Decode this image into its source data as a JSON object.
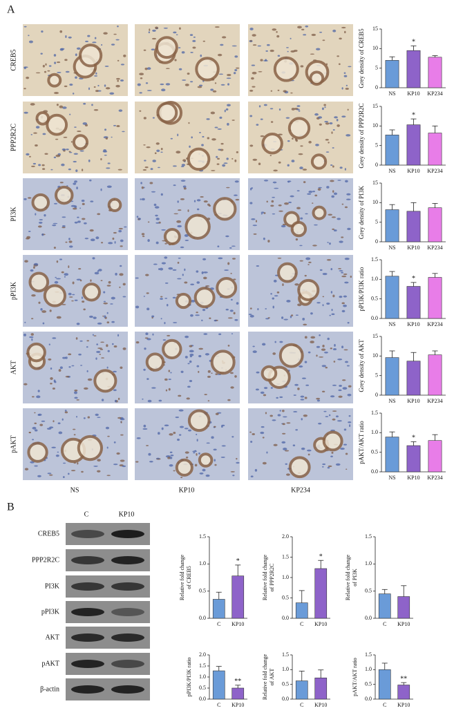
{
  "panel_labels": [
    "A",
    "B"
  ],
  "panel_a": {
    "row_labels": [
      "CREB5",
      "PPP2R2C",
      "PI3K",
      "pPI3K",
      "AKT",
      "pAKT"
    ],
    "column_labels": [
      "NS",
      "KP10",
      "KP234"
    ]
  },
  "panel_b": {
    "blot_column_labels": [
      "C",
      "KP10"
    ],
    "blot_row_labels": [
      "CREB5",
      "PPP2R2C",
      "PI3K",
      "pPI3K",
      "AKT",
      "pAKT",
      "β-actin"
    ]
  },
  "chart_data": [
    {
      "type": "bar",
      "ylabel": "Grey density of CREB5",
      "categories": [
        "NS",
        "KP10",
        "KP234"
      ],
      "values": [
        7,
        9.5,
        7.8
      ],
      "errors": [
        0.9,
        1.2,
        0.4
      ],
      "colors": [
        "#6a9bd8",
        "#8e63c9",
        "#e87de8"
      ],
      "significance": [
        null,
        "*",
        null
      ],
      "ylim": [
        0,
        15
      ],
      "yticks": [
        0,
        5,
        10,
        15
      ]
    },
    {
      "type": "bar",
      "ylabel": "Grey density of PPP2R2C",
      "categories": [
        "NS",
        "KP10",
        "KP234"
      ],
      "values": [
        7.7,
        10.3,
        8.2
      ],
      "errors": [
        1.3,
        1.5,
        1.8
      ],
      "colors": [
        "#6a9bd8",
        "#8e63c9",
        "#e87de8"
      ],
      "significance": [
        null,
        "*",
        null
      ],
      "ylim": [
        0,
        15
      ],
      "yticks": [
        0,
        5,
        10,
        15
      ]
    },
    {
      "type": "bar",
      "ylabel": "Grey density of PI3K",
      "categories": [
        "NS",
        "KP10",
        "KP234"
      ],
      "values": [
        8.2,
        7.8,
        8.7
      ],
      "errors": [
        1.3,
        2.2,
        1.1
      ],
      "colors": [
        "#6a9bd8",
        "#8e63c9",
        "#e87de8"
      ],
      "significance": [
        null,
        null,
        null
      ],
      "ylim": [
        0,
        15
      ],
      "yticks": [
        0,
        5,
        10,
        15
      ]
    },
    {
      "type": "bar",
      "ylabel": "pPI3K/PI3K ratio",
      "categories": [
        "NS",
        "KP10",
        "KP234"
      ],
      "values": [
        1.08,
        0.82,
        1.05
      ],
      "errors": [
        0.12,
        0.1,
        0.1
      ],
      "colors": [
        "#6a9bd8",
        "#8e63c9",
        "#e87de8"
      ],
      "significance": [
        null,
        "*",
        null
      ],
      "ylim": [
        0,
        1.5
      ],
      "yticks": [
        {
          "value": 0,
          "label": "0.0"
        },
        0.5,
        {
          "value": 1,
          "label": "1.0"
        },
        1.5
      ]
    },
    {
      "type": "bar",
      "ylabel": "Grey density of AKT",
      "categories": [
        "NS",
        "KP10",
        "KP234"
      ],
      "values": [
        9.6,
        8.7,
        10.3
      ],
      "errors": [
        1.7,
        2.2,
        1.0
      ],
      "colors": [
        "#6a9bd8",
        "#8e63c9",
        "#e87de8"
      ],
      "significance": [
        null,
        null,
        null
      ],
      "ylim": [
        0,
        15
      ],
      "yticks": [
        0,
        5,
        10,
        15
      ]
    },
    {
      "type": "bar",
      "ylabel": "pAKT/AKT ratio",
      "categories": [
        "NS",
        "KP10",
        "KP234"
      ],
      "values": [
        0.89,
        0.67,
        0.8
      ],
      "errors": [
        0.13,
        0.1,
        0.15
      ],
      "colors": [
        "#6a9bd8",
        "#8e63c9",
        "#e87de8"
      ],
      "significance": [
        null,
        "*",
        null
      ],
      "ylim": [
        0,
        1.5
      ],
      "yticks": [
        {
          "value": 0,
          "label": "0.0"
        },
        0.5,
        {
          "value": 1,
          "label": "1.0"
        },
        1.5
      ]
    },
    {
      "type": "bar",
      "ylabel": [
        "Relative fold change",
        "of CREB5"
      ],
      "categories": [
        "C",
        "KP10"
      ],
      "values": [
        0.35,
        0.78
      ],
      "errors": [
        0.13,
        0.2
      ],
      "colors": [
        "#6a9bd8",
        "#8e63c9"
      ],
      "significance": [
        null,
        "*"
      ],
      "ylim": [
        0,
        1.5
      ],
      "yticks": [
        {
          "value": 0,
          "label": "0.0"
        },
        0.5,
        {
          "value": 1,
          "label": "1.0"
        },
        1.5
      ]
    },
    {
      "type": "bar",
      "ylabel": [
        "Relative fold change",
        "of PPP2R2C"
      ],
      "categories": [
        "C",
        "KP10"
      ],
      "values": [
        0.38,
        1.22
      ],
      "errors": [
        0.3,
        0.2
      ],
      "colors": [
        "#6a9bd8",
        "#8e63c9"
      ],
      "significance": [
        null,
        "*"
      ],
      "ylim": [
        0,
        2
      ],
      "yticks": [
        {
          "value": 0,
          "label": "0.0"
        },
        0.5,
        {
          "value": 1,
          "label": "1.0"
        },
        1.5,
        {
          "value": 2,
          "label": "2.0"
        }
      ]
    },
    {
      "type": "bar",
      "ylabel": [
        "Relative fold change",
        "of PI3K"
      ],
      "categories": [
        "C",
        "KP10"
      ],
      "values": [
        0.45,
        0.4
      ],
      "errors": [
        0.08,
        0.2
      ],
      "colors": [
        "#6a9bd8",
        "#8e63c9"
      ],
      "significance": [
        null,
        null
      ],
      "ylim": [
        0,
        1.5
      ],
      "yticks": [
        {
          "value": 0,
          "label": "0.0"
        },
        0.5,
        {
          "value": 1,
          "label": "1.0"
        },
        1.5
      ]
    },
    {
      "type": "bar",
      "ylabel": [
        "pPI3K/PI3K ratio"
      ],
      "categories": [
        "C",
        "KP10"
      ],
      "values": [
        1.28,
        0.5
      ],
      "errors": [
        0.2,
        0.13
      ],
      "colors": [
        "#6a9bd8",
        "#8e63c9"
      ],
      "significance": [
        null,
        "**"
      ],
      "ylim": [
        0,
        2
      ],
      "yticks": [
        {
          "value": 0,
          "label": "0.0"
        },
        0.5,
        {
          "value": 1,
          "label": "1.0"
        },
        1.5,
        {
          "value": 2,
          "label": "2.0"
        }
      ]
    },
    {
      "type": "bar",
      "ylabel": [
        "Relative fold change",
        "of AKT"
      ],
      "categories": [
        "C",
        "KP10"
      ],
      "values": [
        0.62,
        0.72
      ],
      "errors": [
        0.33,
        0.27
      ],
      "colors": [
        "#6a9bd8",
        "#8e63c9"
      ],
      "significance": [
        null,
        null
      ],
      "ylim": [
        0,
        1.5
      ],
      "yticks": [
        {
          "value": 0,
          "label": "0.0"
        },
        0.5,
        {
          "value": 1,
          "label": "1.0"
        },
        1.5
      ]
    },
    {
      "type": "bar",
      "ylabel": [
        "pAKT/AKT ratio"
      ],
      "categories": [
        "C",
        "KP10"
      ],
      "values": [
        1.0,
        0.48
      ],
      "errors": [
        0.22,
        0.08
      ],
      "colors": [
        "#6a9bd8",
        "#8e63c9"
      ],
      "significance": [
        null,
        "**"
      ],
      "ylim": [
        0,
        1.5
      ],
      "yticks": [
        {
          "value": 0,
          "label": "0.0"
        },
        0.5,
        {
          "value": 1,
          "label": "1.0"
        },
        1.5
      ]
    }
  ]
}
